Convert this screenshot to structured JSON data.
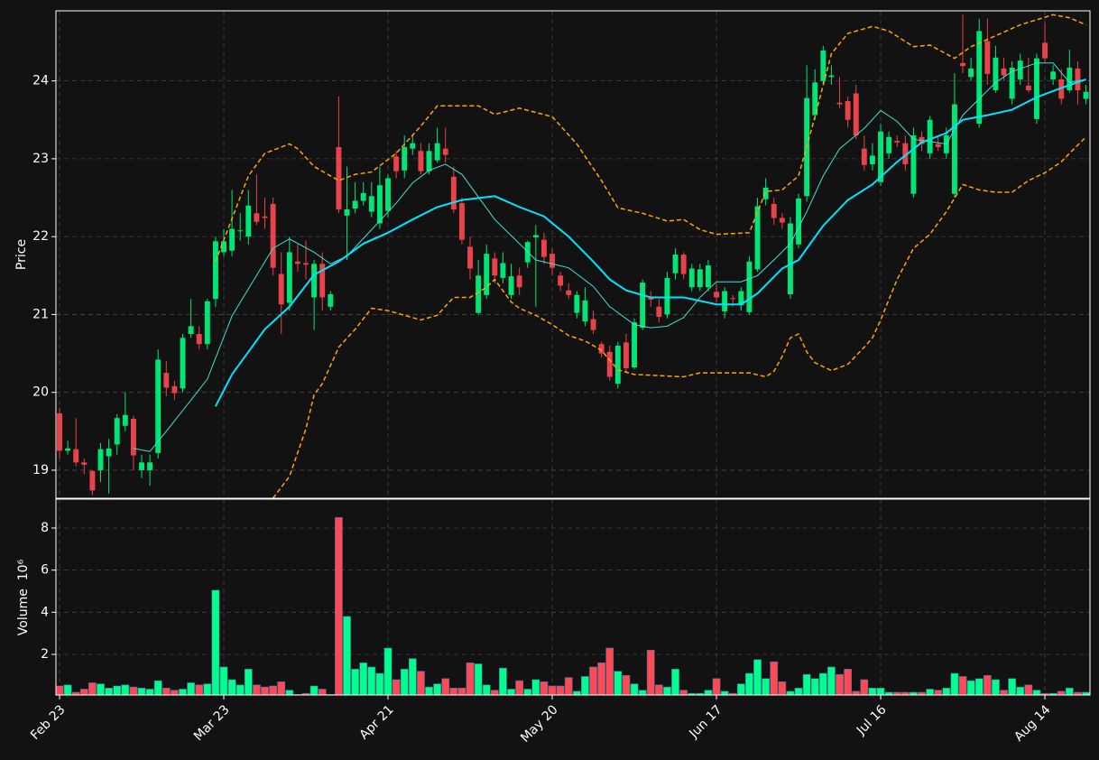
{
  "chart_data": {
    "type": "candlestick",
    "ylabel": "Price",
    "volume_label": "Volume  10⁶",
    "grid": true,
    "up_color": "#00e676",
    "down_color": "#e8434a",
    "volume_up_color": "#00ff8c",
    "volume_down_color": "#ff4a55",
    "xlim": [
      -0.44,
      125.49
    ],
    "xticks": [
      {
        "value": 0,
        "label": "Feb 23"
      },
      {
        "value": 20,
        "label": "Mar 23"
      },
      {
        "value": 40,
        "label": "Apr 21"
      },
      {
        "value": 60,
        "label": "May 20"
      },
      {
        "value": 80,
        "label": "Jun 17"
      },
      {
        "value": 100,
        "label": "Jul 16"
      },
      {
        "value": 120,
        "label": "Aug 14"
      }
    ],
    "ylim": [
      18.64,
      24.9
    ],
    "yticks": [
      19,
      20,
      21,
      22,
      23,
      24
    ],
    "volume_ylim": [
      0.07,
      9.37
    ],
    "volume_yticks": [
      2,
      4,
      6,
      8
    ],
    "open": [
      19.73,
      19.25,
      19.27,
      19.1,
      18.99,
      19.0,
      19.18,
      19.33,
      19.57,
      19.66,
      19.0,
      19.0,
      19.22,
      20.25,
      20.08,
      20.05,
      20.75,
      20.75,
      20.62,
      21.2,
      21.8,
      21.82,
      22.07,
      22.0,
      22.3,
      22.26,
      22.42,
      21.52,
      21.15,
      21.68,
      21.66,
      21.22,
      21.65,
      21.1,
      23.15,
      22.27,
      22.36,
      22.46,
      22.32,
      22.17,
      22.33,
      23.03,
      22.85,
      23.13,
      23.1,
      22.84,
      22.98,
      23.13,
      22.77,
      22.43,
      21.87,
      21.02,
      21.25,
      21.72,
      21.47,
      21.25,
      21.5,
      21.67,
      21.99,
      21.96,
      21.78,
      21.5,
      21.31,
      21.02,
      20.91,
      20.94,
      20.62,
      20.52,
      20.11,
      20.64,
      20.32,
      20.83,
      21.21,
      21.1,
      21.0,
      21.53,
      21.77,
      21.35,
      21.35,
      21.35,
      21.29,
      21.04,
      21.21,
      21.12,
      21.03,
      21.58,
      22.48,
      22.42,
      22.24,
      21.26,
      21.9,
      22.52,
      23.56,
      24.0,
      24.05,
      23.72,
      23.74,
      23.84,
      23.13,
      22.93,
      22.7,
      23.07,
      23.23,
      23.2,
      22.55,
      23.28,
      23.07,
      23.19,
      23.07,
      22.55,
      24.23,
      24.05,
      23.45,
      24.51,
      23.88,
      24.16,
      23.77,
      24.02,
      23.94,
      23.51,
      24.49,
      24.02,
      24.02,
      23.88,
      24.16,
      23.77
    ],
    "high": [
      19.8,
      19.38,
      19.67,
      19.15,
      19.0,
      19.35,
      19.4,
      19.72,
      20.0,
      19.7,
      19.2,
      19.2,
      20.55,
      20.4,
      20.15,
      20.75,
      21.2,
      20.85,
      21.2,
      22.0,
      22.1,
      22.6,
      22.3,
      22.6,
      22.8,
      22.5,
      22.5,
      21.8,
      22.0,
      21.9,
      21.95,
      21.7,
      21.8,
      21.3,
      23.8,
      22.9,
      22.7,
      22.7,
      22.7,
      22.9,
      22.8,
      23.1,
      23.3,
      23.3,
      23.2,
      23.2,
      23.4,
      23.4,
      22.9,
      22.5,
      22.0,
      21.7,
      21.9,
      21.8,
      21.8,
      21.65,
      21.6,
      21.95,
      22.15,
      22.05,
      21.85,
      21.55,
      21.4,
      21.3,
      21.35,
      21.05,
      20.65,
      20.6,
      20.65,
      20.75,
      20.95,
      21.45,
      21.3,
      21.2,
      21.55,
      21.85,
      21.8,
      21.65,
      21.65,
      21.7,
      21.4,
      21.35,
      21.25,
      21.35,
      21.75,
      22.5,
      22.75,
      22.5,
      22.3,
      22.25,
      22.55,
      24.2,
      24.15,
      24.45,
      24.2,
      24.05,
      23.8,
      23.95,
      23.3,
      23.2,
      23.45,
      23.35,
      23.3,
      23.3,
      23.4,
      23.35,
      23.55,
      23.3,
      23.4,
      24.1,
      24.85,
      24.3,
      24.8,
      24.8,
      24.45,
      24.3,
      24.25,
      24.35,
      24.3,
      24.35,
      24.75,
      24.2,
      24.15,
      24.4,
      24.25,
      23.95
    ],
    "low": [
      19.15,
      19.2,
      19.05,
      18.95,
      18.68,
      18.85,
      18.7,
      19.2,
      19.5,
      19.0,
      18.9,
      18.8,
      19.15,
      19.95,
      19.9,
      20.0,
      20.7,
      20.55,
      20.55,
      21.1,
      21.75,
      21.75,
      21.95,
      21.9,
      22.15,
      22.1,
      21.5,
      20.75,
      21.05,
      21.55,
      21.45,
      20.8,
      21.05,
      21.05,
      22.3,
      21.7,
      22.3,
      22.4,
      22.25,
      22.1,
      22.25,
      22.75,
      22.75,
      23.05,
      22.8,
      22.8,
      22.95,
      22.95,
      22.3,
      21.9,
      21.45,
      21.0,
      21.2,
      21.4,
      21.4,
      21.2,
      21.25,
      21.6,
      21.1,
      21.65,
      21.5,
      21.3,
      21.2,
      20.95,
      20.85,
      20.75,
      20.45,
      20.15,
      20.05,
      20.25,
      20.3,
      20.8,
      21.1,
      20.9,
      20.95,
      21.45,
      21.45,
      21.3,
      21.3,
      21.3,
      21.15,
      20.95,
      21.1,
      21.05,
      21.0,
      21.55,
      22.4,
      22.15,
      22.1,
      21.2,
      21.85,
      22.45,
      23.5,
      23.95,
      23.95,
      23.65,
      23.4,
      23.25,
      22.85,
      22.85,
      22.65,
      23.0,
      23.15,
      22.85,
      22.5,
      23.1,
      23.0,
      23.1,
      23.0,
      22.5,
      24.1,
      24.0,
      23.4,
      23.95,
      23.85,
      24.0,
      23.7,
      23.95,
      23.85,
      23.45,
      24.25,
      23.95,
      23.7,
      23.85,
      23.7,
      23.7
    ],
    "close": [
      19.25,
      19.28,
      19.1,
      19.07,
      18.74,
      19.27,
      19.28,
      19.67,
      19.71,
      19.19,
      19.1,
      19.1,
      20.42,
      20.06,
      19.99,
      20.7,
      20.85,
      20.62,
      21.17,
      21.94,
      21.94,
      22.1,
      22.08,
      22.4,
      22.19,
      22.24,
      21.6,
      21.13,
      21.8,
      21.65,
      21.64,
      21.65,
      21.22,
      21.26,
      22.35,
      22.35,
      22.46,
      22.56,
      22.52,
      22.66,
      22.75,
      22.84,
      23.15,
      23.2,
      22.84,
      23.1,
      23.2,
      23.05,
      22.35,
      21.96,
      21.59,
      21.5,
      21.78,
      21.5,
      21.66,
      21.49,
      21.35,
      21.93,
      22.02,
      21.74,
      21.6,
      21.37,
      21.25,
      21.25,
      21.18,
      20.8,
      20.5,
      20.2,
      20.6,
      20.31,
      20.9,
      21.41,
      21.19,
      20.97,
      21.47,
      21.77,
      21.52,
      21.59,
      21.58,
      21.63,
      21.22,
      21.3,
      21.2,
      21.3,
      21.68,
      22.39,
      22.63,
      22.24,
      22.18,
      22.17,
      22.49,
      23.78,
      23.98,
      24.39,
      24.07,
      23.7,
      23.5,
      23.3,
      22.92,
      23.04,
      23.35,
      23.28,
      23.21,
      22.93,
      23.3,
      23.19,
      23.5,
      23.15,
      23.3,
      23.7,
      24.19,
      24.16,
      24.64,
      24.09,
      24.3,
      24.07,
      24.17,
      24.26,
      23.88,
      24.29,
      24.29,
      24.12,
      23.77,
      24.17,
      23.88,
      23.86
    ],
    "volume": [
      0.5,
      0.55,
      0.2,
      0.35,
      0.65,
      0.6,
      0.4,
      0.5,
      0.55,
      0.45,
      0.4,
      0.35,
      0.75,
      0.4,
      0.3,
      0.35,
      0.65,
      0.55,
      0.6,
      5.05,
      1.4,
      0.8,
      0.55,
      1.3,
      0.55,
      0.45,
      0.5,
      0.7,
      0.3,
      0.1,
      0.15,
      0.5,
      0.35,
      0.1,
      8.5,
      3.8,
      1.3,
      1.6,
      1.4,
      1.1,
      2.3,
      0.8,
      1.3,
      1.8,
      1.2,
      0.45,
      0.6,
      0.85,
      0.4,
      0.4,
      1.6,
      1.55,
      0.55,
      0.3,
      1.35,
      0.35,
      0.75,
      0.35,
      0.8,
      0.7,
      0.5,
      0.5,
      0.9,
      0.25,
      0.95,
      1.4,
      1.6,
      2.3,
      1.2,
      1.0,
      0.6,
      0.3,
      2.2,
      0.55,
      0.45,
      1.3,
      0.3,
      0.15,
      0.15,
      0.3,
      0.85,
      0.25,
      0.15,
      0.6,
      1.1,
      1.75,
      0.85,
      1.65,
      0.7,
      0.25,
      0.4,
      1.05,
      0.85,
      1.1,
      1.4,
      1.05,
      1.3,
      0.25,
      0.8,
      0.4,
      0.4,
      0.2,
      0.2,
      0.2,
      0.2,
      0.2,
      0.35,
      0.3,
      0.4,
      1.1,
      0.95,
      0.75,
      0.85,
      1.0,
      0.8,
      0.3,
      0.85,
      0.45,
      0.55,
      0.3,
      0.15,
      0.15,
      0.25,
      0.4,
      0.2,
      0.2
    ],
    "overlays": [
      {
        "color": "#40e0d0",
        "width": 1,
        "style": "solid",
        "x": [
          9,
          11,
          13,
          16,
          18,
          21,
          23,
          26,
          28,
          31,
          33,
          35,
          38,
          41,
          43,
          45,
          47,
          49,
          53,
          56,
          58,
          62,
          65,
          67,
          70,
          72,
          74,
          76,
          78,
          80,
          83,
          85,
          87,
          89,
          91,
          93,
          95,
          98,
          100,
          102,
          104,
          106,
          108,
          110,
          112,
          114,
          116,
          119,
          121,
          123,
          125
        ],
        "values": [
          19.28,
          19.24,
          19.5,
          19.9,
          20.17,
          20.98,
          21.33,
          21.85,
          21.97,
          21.8,
          21.65,
          21.75,
          22.09,
          22.43,
          22.69,
          22.85,
          22.93,
          22.8,
          22.22,
          21.91,
          21.7,
          21.6,
          21.36,
          21.1,
          20.87,
          20.83,
          20.85,
          20.96,
          21.22,
          21.42,
          21.42,
          21.5,
          21.7,
          21.91,
          22.32,
          22.78,
          23.13,
          23.39,
          23.62,
          23.48,
          23.25,
          23.22,
          23.19,
          23.56,
          23.77,
          23.98,
          24.12,
          24.23,
          24.23,
          23.98,
          24.02
        ]
      },
      {
        "color": "#00e5ff",
        "width": 2,
        "style": "solid",
        "x": [
          19,
          21,
          25,
          28,
          31,
          34,
          37,
          40,
          43,
          46,
          49,
          53,
          56,
          59,
          62,
          65,
          67,
          69,
          72,
          76,
          80,
          83,
          85,
          88,
          90,
          93,
          96,
          99,
          102,
          105,
          108,
          110,
          113,
          116,
          119,
          122,
          125
        ],
        "values": [
          19.82,
          20.23,
          20.81,
          21.1,
          21.51,
          21.68,
          21.91,
          22.05,
          22.22,
          22.38,
          22.47,
          22.52,
          22.38,
          22.26,
          22.0,
          21.68,
          21.45,
          21.31,
          21.22,
          21.22,
          21.13,
          21.13,
          21.27,
          21.59,
          21.7,
          22.14,
          22.47,
          22.67,
          22.96,
          23.21,
          23.33,
          23.5,
          23.56,
          23.63,
          23.79,
          23.91,
          24.02
        ]
      },
      {
        "color": "#ffa500",
        "width": 1.5,
        "style": "dashed",
        "x": [
          19,
          23,
          25,
          28,
          29,
          31,
          34,
          36,
          38,
          41,
          44,
          46,
          51,
          53,
          56,
          60,
          63,
          66,
          68,
          71,
          74,
          76,
          78,
          80,
          84,
          86,
          88,
          90,
          92,
          94,
          96,
          99,
          101,
          104,
          106,
          109,
          111,
          114,
          117,
          121,
          123,
          125
        ],
        "values": [
          21.68,
          22.78,
          23.07,
          23.19,
          23.13,
          22.9,
          22.72,
          22.8,
          22.83,
          23.07,
          23.42,
          23.68,
          23.68,
          23.57,
          23.65,
          23.54,
          23.19,
          22.72,
          22.37,
          22.3,
          22.2,
          22.22,
          22.09,
          22.03,
          22.05,
          22.58,
          22.6,
          22.78,
          23.54,
          24.35,
          24.61,
          24.7,
          24.64,
          24.44,
          24.46,
          24.29,
          24.44,
          24.58,
          24.72,
          24.85,
          24.81,
          24.72
        ]
      },
      {
        "color": "#ffa500",
        "width": 1.5,
        "style": "dashed",
        "x": [
          26,
          27,
          28,
          30,
          31,
          32,
          34,
          36,
          38,
          40,
          42,
          44,
          46,
          48,
          50,
          52,
          53,
          55,
          56,
          58,
          60,
          62,
          64,
          66,
          68,
          70,
          72,
          74,
          76,
          78,
          80,
          82,
          84,
          86,
          87,
          88,
          89,
          90,
          91,
          92,
          94,
          96,
          98,
          99,
          100,
          102,
          104,
          106,
          108,
          110,
          112,
          114,
          116,
          118,
          120,
          122,
          123,
          125
        ],
        "values": [
          18.64,
          18.78,
          18.92,
          19.53,
          19.97,
          20.11,
          20.58,
          20.81,
          21.08,
          21.05,
          20.99,
          20.93,
          20.99,
          21.22,
          21.22,
          21.35,
          21.45,
          21.16,
          21.08,
          20.99,
          20.87,
          20.73,
          20.66,
          20.54,
          20.29,
          20.23,
          20.22,
          20.21,
          20.2,
          20.25,
          20.25,
          20.25,
          20.25,
          20.2,
          20.27,
          20.46,
          20.7,
          20.75,
          20.52,
          20.38,
          20.28,
          20.36,
          20.58,
          20.7,
          20.93,
          21.45,
          21.85,
          22.03,
          22.32,
          22.67,
          22.6,
          22.57,
          22.57,
          22.72,
          22.82,
          22.96,
          23.07,
          23.28
        ]
      }
    ]
  }
}
